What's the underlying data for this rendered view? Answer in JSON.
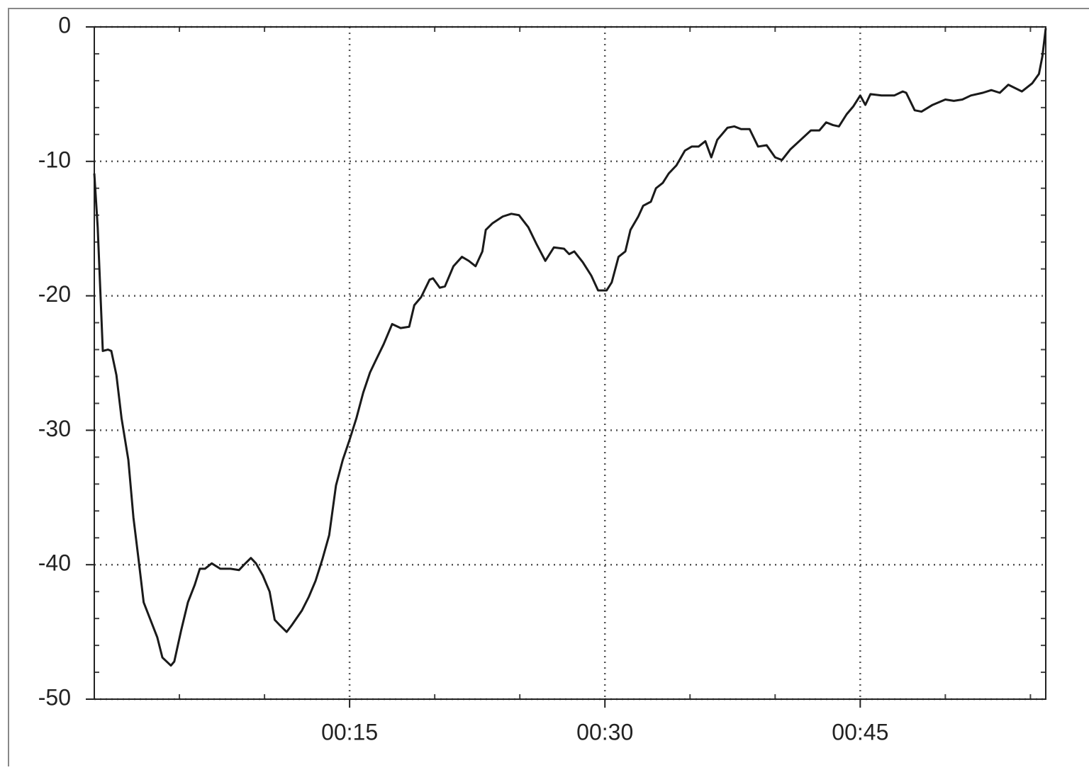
{
  "chart_data": {
    "type": "line",
    "xlim": [
      0,
      55.9
    ],
    "ylim": [
      -50,
      0
    ],
    "xticks": [
      {
        "value": 15,
        "label": "00:15"
      },
      {
        "value": 30,
        "label": "00:30"
      },
      {
        "value": 45,
        "label": "00:45"
      }
    ],
    "yticks": [
      0,
      -10,
      -20,
      -30,
      -40,
      -50
    ],
    "xminorticks": [
      5,
      10,
      20,
      25,
      35,
      40,
      50,
      55
    ],
    "yminorticks": [
      -2,
      -4,
      -6,
      -8,
      -12,
      -14,
      -16,
      -18,
      -22,
      -24,
      -26,
      -28,
      -32,
      -34,
      -36,
      -38,
      -42,
      -44,
      -46,
      -48
    ],
    "grid": true,
    "series": [
      {
        "color": "#1a1a1a",
        "x": [
          0,
          0.2,
          0.5,
          0.8,
          1.0,
          1.3,
          1.6,
          2.0,
          2.3,
          2.6,
          2.9,
          3.3,
          3.7,
          4.0,
          4.5,
          4.7,
          5.1,
          5.5,
          5.9,
          6.2,
          6.5,
          6.9,
          7.4,
          8.0,
          8.5,
          8.8,
          9.2,
          9.5,
          9.9,
          10.3,
          10.6,
          10.9,
          11.3,
          11.6,
          12.2,
          12.6,
          13.0,
          13.4,
          13.8,
          14.2,
          14.6,
          15.0,
          15.4,
          15.8,
          16.2,
          16.5,
          17.0,
          17.5,
          18.0,
          18.5,
          18.8,
          19.2,
          19.7,
          19.9,
          20.3,
          20.6,
          21.1,
          21.6,
          22.0,
          22.4,
          22.8,
          23.0,
          23.4,
          24.0,
          24.5,
          24.95,
          25.5,
          26.0,
          26.5,
          27.0,
          27.6,
          27.9,
          28.2,
          28.7,
          29.2,
          29.6,
          30.1,
          30.4,
          30.8,
          31.2,
          31.5,
          31.96,
          32.25,
          32.7,
          33.0,
          33.4,
          33.75,
          34.2,
          34.7,
          35.1,
          35.5,
          35.9,
          36.25,
          36.6,
          37.2,
          37.6,
          38.0,
          38.5,
          39.0,
          39.5,
          40.0,
          40.4,
          40.9,
          41.5,
          42.1,
          42.6,
          43.0,
          43.4,
          43.75,
          44.2,
          44.6,
          45.0,
          45.3,
          45.6,
          46.25,
          47.0,
          47.5,
          47.7,
          48.2,
          48.6,
          49.25,
          50.0,
          50.5,
          51.0,
          51.5,
          52.2,
          52.7,
          53.2,
          53.7,
          54.5,
          55.1,
          55.5,
          55.7,
          55.9
        ],
        "values": [
          -10.9,
          -14.9,
          -24.1,
          -24,
          -24.1,
          -25.9,
          -29.1,
          -32.2,
          -36.5,
          -39.6,
          -42.8,
          -44.1,
          -45.4,
          -46.9,
          -47.5,
          -47.2,
          -44.9,
          -42.8,
          -41.5,
          -40.3,
          -40.3,
          -39.9,
          -40.3,
          -40.3,
          -40.4,
          -40.0,
          -39.5,
          -39.9,
          -40.8,
          -42.0,
          -44.1,
          -44.5,
          -45.0,
          -44.5,
          -43.4,
          -42.4,
          -41.2,
          -39.6,
          -37.8,
          -34.1,
          -32.2,
          -30.7,
          -29.1,
          -27.2,
          -25.7,
          -24.9,
          -23.6,
          -22.1,
          -22.4,
          -22.3,
          -20.7,
          -20.1,
          -18.8,
          -18.7,
          -19.4,
          -19.3,
          -17.8,
          -17.1,
          -17.4,
          -17.8,
          -16.7,
          -15.1,
          -14.6,
          -14.1,
          -13.9,
          -14.0,
          -14.9,
          -16.2,
          -17.4,
          -16.4,
          -16.5,
          -16.9,
          -16.7,
          -17.5,
          -18.5,
          -19.6,
          -19.6,
          -19.0,
          -17.1,
          -16.7,
          -15.1,
          -14.1,
          -13.3,
          -13.0,
          -12.0,
          -11.6,
          -10.9,
          -10.3,
          -9.2,
          -8.9,
          -8.9,
          -8.5,
          -9.7,
          -8.4,
          -7.5,
          -7.4,
          -7.6,
          -7.6,
          -8.9,
          -8.8,
          -9.7,
          -9.9,
          -9.1,
          -8.4,
          -7.7,
          -7.7,
          -7.1,
          -7.3,
          -7.4,
          -6.5,
          -5.9,
          -5.1,
          -5.8,
          -5.0,
          -5.1,
          -5.1,
          -4.8,
          -4.9,
          -6.2,
          -6.3,
          -5.8,
          -5.4,
          -5.5,
          -5.4,
          -5.1,
          -4.9,
          -4.7,
          -4.9,
          -4.3,
          -4.8,
          -4.2,
          -3.5,
          -2.2,
          -0.1
        ]
      }
    ]
  }
}
